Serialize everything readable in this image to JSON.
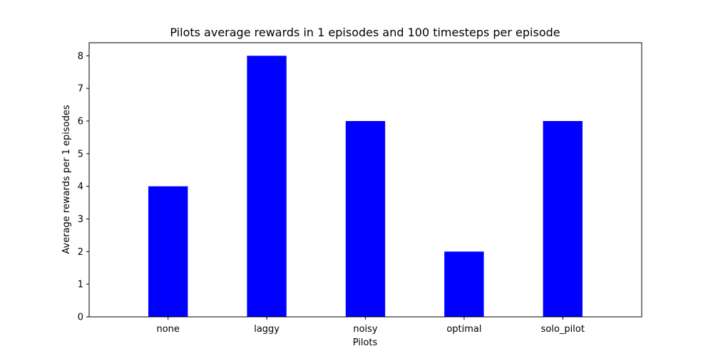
{
  "chart_data": {
    "type": "bar",
    "title": "Pilots average rewards in 1 episodes and 100 timesteps per episode",
    "xlabel": "Pilots",
    "ylabel": "Average rewards per 1 episodes",
    "categories": [
      "none",
      "laggy",
      "noisy",
      "optimal",
      "solo_pilot"
    ],
    "values": [
      4,
      8,
      6,
      2,
      6
    ],
    "ylim": [
      0,
      8.4
    ],
    "yticks": [
      0,
      1,
      2,
      3,
      4,
      5,
      6,
      7,
      8
    ],
    "bar_color": "#0000ff",
    "grid": false,
    "legend": "none"
  }
}
